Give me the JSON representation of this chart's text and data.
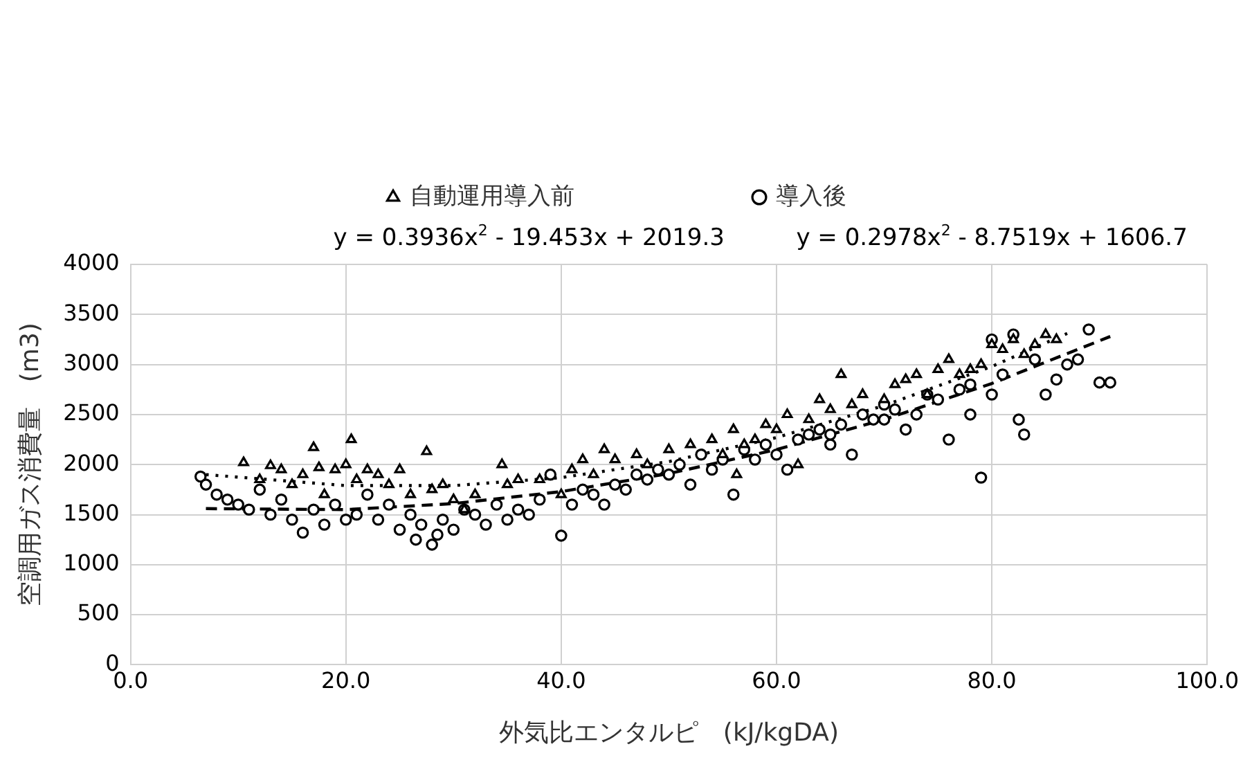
{
  "chart_data": {
    "type": "scatter",
    "xlabel": "外気比エンタルピ　(kJ/kgDA)",
    "ylabel": "空調用ガス消費量　(m3)",
    "annotations": [
      "y = 0.3936x$^{2}$ - 19.453x + 2019.3",
      "y = 0.2978x$^{2}$ - 8.7519x + 1606.7"
    ],
    "xlim": [
      0,
      100
    ],
    "xticks": [
      {
        "value": 0,
        "label": "0.0"
      },
      {
        "value": 20,
        "label": "20.0"
      },
      {
        "value": 40,
        "label": "40.0"
      },
      {
        "value": 60,
        "label": "60.0"
      },
      {
        "value": 80,
        "label": "80.0"
      },
      {
        "value": 100,
        "label": "100.0"
      }
    ],
    "ylim": [
      0,
      4000
    ],
    "yticks": [
      0,
      500,
      1000,
      1500,
      2000,
      2500,
      3000,
      3500,
      4000
    ],
    "grid": true,
    "legend": "top",
    "series": [
      {
        "name": "自動運用導入前",
        "color": "#000000",
        "marker": "triangle",
        "x": [
          10.5,
          12,
          13,
          14,
          15,
          16,
          17,
          17.5,
          18,
          19,
          20,
          20.5,
          21,
          22,
          23,
          24,
          25,
          26,
          27.5,
          28,
          29,
          30,
          31,
          32,
          34.5,
          35,
          36,
          38,
          40,
          41,
          42,
          43,
          44,
          45,
          47,
          48,
          50,
          52,
          54,
          55,
          56,
          56.3,
          57,
          58,
          59,
          60,
          61,
          62,
          63,
          64,
          65,
          66,
          67,
          68,
          70,
          71,
          72,
          73,
          74,
          75,
          76,
          77,
          78,
          79,
          80,
          81,
          82,
          83,
          84,
          85,
          86
        ],
        "values": [
          2020,
          1850,
          1990,
          1950,
          1800,
          1900,
          2170,
          1970,
          1700,
          1950,
          2000,
          2250,
          1850,
          1950,
          1900,
          1800,
          1950,
          1700,
          2130,
          1750,
          1800,
          1650,
          1550,
          1700,
          2000,
          1800,
          1850,
          1850,
          1700,
          1950,
          2050,
          1900,
          2150,
          2050,
          2100,
          2000,
          2150,
          2200,
          2250,
          2100,
          2350,
          1900,
          2200,
          2250,
          2400,
          2350,
          2500,
          2000,
          2450,
          2650,
          2550,
          2900,
          2600,
          2700,
          2650,
          2800,
          2850,
          2900,
          2700,
          2950,
          3050,
          2900,
          2950,
          3000,
          3200,
          3150,
          3250,
          3100,
          3200,
          3300,
          3250
        ]
      },
      {
        "name": "導入後",
        "color": "#000000",
        "marker": "circle",
        "x": [
          6.5,
          7,
          8,
          9,
          10,
          11,
          12,
          13,
          14,
          15,
          16,
          17,
          18,
          19,
          20,
          21,
          22,
          23,
          24,
          25,
          26,
          26.5,
          27,
          28,
          28.5,
          29,
          30,
          31,
          32,
          33,
          34,
          35,
          36,
          37,
          38,
          39,
          40,
          41,
          42,
          43,
          44,
          45,
          46,
          47,
          48,
          49,
          50,
          51,
          52,
          53,
          54,
          55,
          56,
          57,
          58,
          59,
          60,
          61,
          62,
          63,
          64,
          65,
          65,
          66,
          67,
          68,
          69,
          70,
          70,
          71,
          72,
          73,
          74,
          75,
          76,
          77,
          78,
          78,
          79,
          80,
          80,
          81,
          82,
          82.5,
          83,
          84,
          85,
          86,
          87,
          88,
          89,
          90,
          91
        ],
        "values": [
          1880,
          1800,
          1700,
          1650,
          1600,
          1550,
          1750,
          1500,
          1650,
          1450,
          1320,
          1550,
          1400,
          1600,
          1450,
          1500,
          1700,
          1450,
          1600,
          1350,
          1500,
          1250,
          1400,
          1200,
          1300,
          1450,
          1350,
          1550,
          1500,
          1400,
          1600,
          1450,
          1550,
          1500,
          1650,
          1900,
          1290,
          1600,
          1750,
          1700,
          1600,
          1800,
          1750,
          1900,
          1850,
          1950,
          1900,
          2000,
          1800,
          2100,
          1950,
          2050,
          1700,
          2150,
          2050,
          2200,
          2100,
          1950,
          2250,
          2300,
          2350,
          2200,
          2300,
          2400,
          2100,
          2500,
          2450,
          2600,
          2450,
          2550,
          2350,
          2500,
          2700,
          2650,
          2250,
          2750,
          2800,
          2500,
          1870,
          3250,
          2700,
          2900,
          3300,
          2450,
          2300,
          3050,
          2700,
          2850,
          3000,
          3050,
          3350,
          2820,
          2820
        ]
      },
      {
        "type": "line",
        "color": "#000000",
        "marker": "none",
        "line_style": "dotted",
        "x": [
          7,
          20,
          30,
          40,
          50,
          60,
          70,
          80,
          87
        ],
        "values": [
          1900,
          1790,
          1790,
          1870,
          2030,
          2270,
          2590,
          2980,
          3310
        ]
      },
      {
        "type": "line",
        "color": "#000000",
        "marker": "none",
        "line_style": "dashed",
        "x": [
          7,
          20,
          30,
          40,
          50,
          60,
          70,
          80,
          91
        ],
        "values": [
          1560,
          1550,
          1610,
          1730,
          1910,
          2150,
          2450,
          2810,
          3280
        ]
      }
    ]
  }
}
